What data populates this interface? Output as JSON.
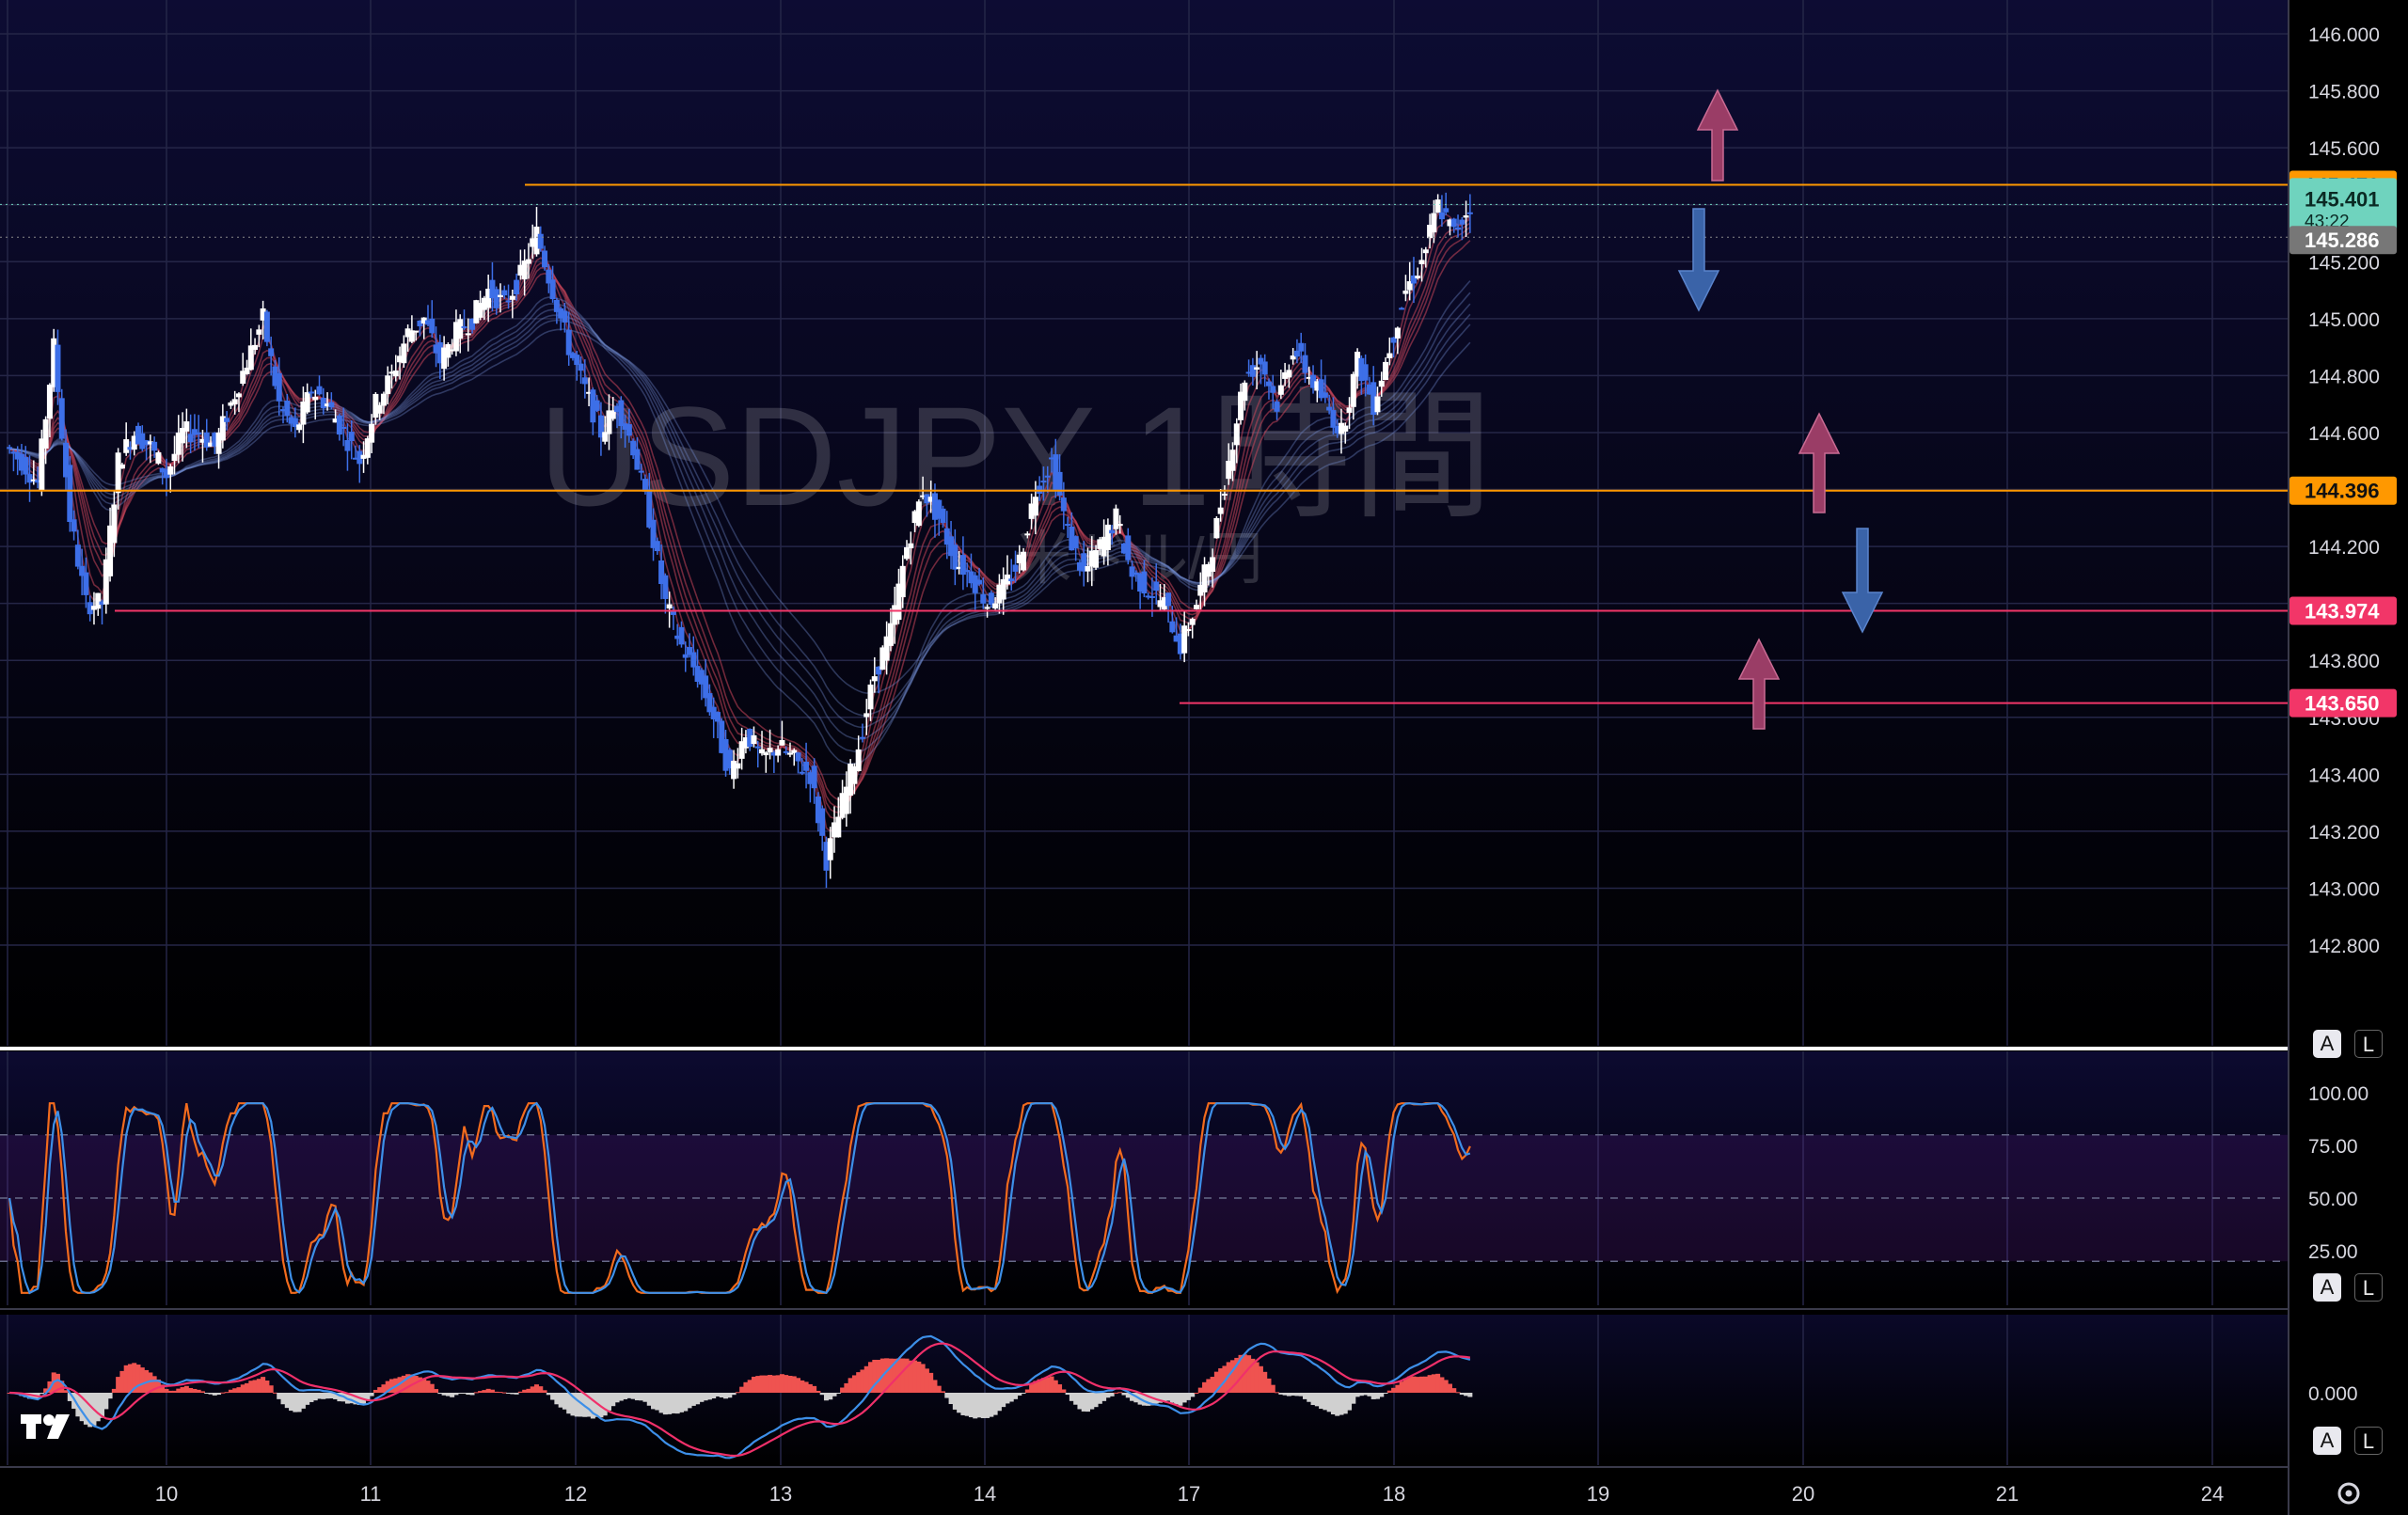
{
  "chart_data": [
    {
      "type": "candlestick",
      "symbol_watermark": "USDJPY 1時間",
      "symbol_sub_watermark": "米ドル/円",
      "yticks": [
        "146.000",
        "145.800",
        "145.600",
        "145.400",
        "145.200",
        "145.000",
        "144.800",
        "144.600",
        "144.400",
        "144.200",
        "144.000",
        "143.800",
        "143.600",
        "143.400",
        "143.200",
        "143.000",
        "142.800"
      ],
      "ylim": [
        142.72,
        146.12
      ],
      "x_labels": [
        "10",
        "11",
        "12",
        "13",
        "14",
        "17",
        "18",
        "19",
        "20",
        "21",
        "24"
      ],
      "last_price": {
        "value": "145.401",
        "countdown": "43:22"
      },
      "prev_close_tag": "145.286",
      "levels": [
        {
          "value": 145.47,
          "label": "145.470",
          "color": "#ff9800"
        },
        {
          "value": 144.396,
          "label": "144.396",
          "color": "#ff9800"
        },
        {
          "value": 143.974,
          "label": "143.974",
          "color": "#f23668"
        },
        {
          "value": 143.65,
          "label": "143.650",
          "color": "#f23668"
        }
      ],
      "arrows": [
        {
          "direction": "up",
          "color": "#9a3d66"
        },
        {
          "direction": "down",
          "color": "#3a63a8"
        },
        {
          "direction": "up",
          "color": "#9a3d66"
        },
        {
          "direction": "down",
          "color": "#3a63a8"
        },
        {
          "direction": "up",
          "color": "#9a3d66"
        }
      ],
      "price_path": [
        144.55,
        144.5,
        144.42,
        144.9,
        144.3,
        144.0,
        144.0,
        144.5,
        144.6,
        144.55,
        144.45,
        144.6,
        144.6,
        144.55,
        144.7,
        144.85,
        145.0,
        144.7,
        144.6,
        144.75,
        144.7,
        144.6,
        144.5,
        144.7,
        144.8,
        144.95,
        145.0,
        144.85,
        144.95,
        145.0,
        145.1,
        145.05,
        145.15,
        145.3,
        145.1,
        144.9,
        144.75,
        144.6,
        144.7,
        144.55,
        144.3,
        144.0,
        143.85,
        143.75,
        143.6,
        143.4,
        143.55,
        143.45,
        143.5,
        143.45,
        143.4,
        143.1,
        143.3,
        143.5,
        143.75,
        143.9,
        144.2,
        144.4,
        144.3,
        144.15,
        144.1,
        144.0,
        144.05,
        144.15,
        144.4,
        144.5,
        144.25,
        144.1,
        144.2,
        144.3,
        144.1,
        144.05,
        144.0,
        143.85,
        144.0,
        144.2,
        144.5,
        144.8,
        144.85,
        144.7,
        144.9,
        144.8,
        144.7,
        144.6,
        144.85,
        144.7,
        144.9,
        145.1,
        145.2,
        145.4,
        145.3,
        145.4
      ],
      "stochastic": {
        "yticks": [
          "100.00",
          "75.00",
          "50.00",
          "25.00"
        ],
        "ylim": [
          12,
          107
        ],
        "bands": [
          20,
          80
        ]
      },
      "macd": {
        "yticks": [
          "0.000"
        ]
      }
    }
  ],
  "colors": {
    "bg_main": "#0b0a2a",
    "bg_bottom": "#000000",
    "grid": "#252647",
    "bull": "#ffffff",
    "bear": "#3d6fe8",
    "stoch_k": "#f26b1d",
    "stoch_d": "#3d8fe8",
    "macd_line": "#3d8fe8",
    "signal_line": "#f0306a",
    "hist_pos": "#ef5350",
    "hist_neg": "#d0d0d0",
    "last_price_bg": "#6fd3be",
    "prev_close_bg": "#777777"
  },
  "ui": {
    "btn_a": "A",
    "btn_l": "L",
    "settings_icon": "gear-icon",
    "logo": "tradingview-logo"
  }
}
